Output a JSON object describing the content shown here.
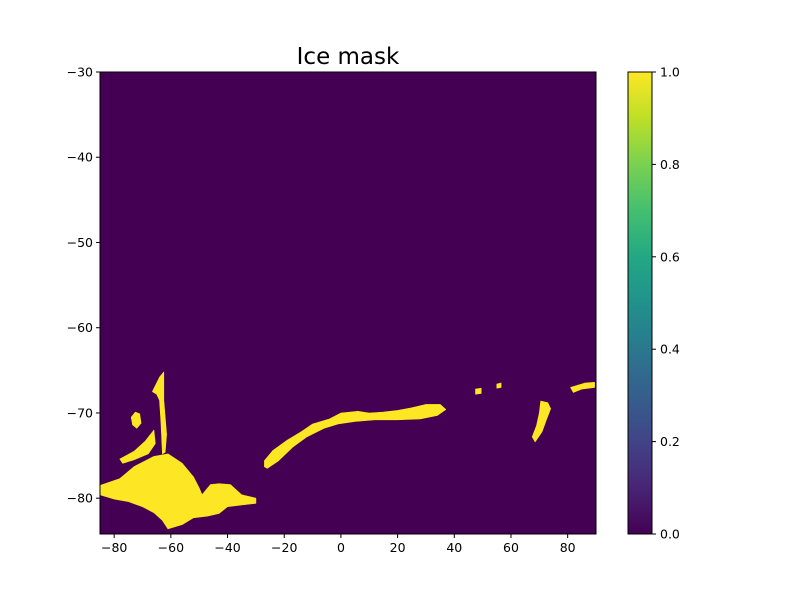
{
  "chart_data": {
    "type": "heatmap",
    "title": "Ice mask",
    "xlabel": "",
    "ylabel": "",
    "xlim": [
      -85,
      90
    ],
    "ylim": [
      -84.2,
      -30
    ],
    "xticks": [
      -80,
      -60,
      -40,
      -20,
      0,
      20,
      40,
      60,
      80
    ],
    "xtick_labels": [
      "−80",
      "−60",
      "−40",
      "−20",
      "0",
      "20",
      "40",
      "60",
      "80"
    ],
    "yticks": [
      -80,
      -70,
      -60,
      -50,
      -40,
      -30
    ],
    "ytick_labels": [
      "−80",
      "−70",
      "−60",
      "−50",
      "−40",
      "−30"
    ],
    "value_range": [
      0,
      1
    ],
    "colormap": "viridis",
    "background_value": 0,
    "grid": false,
    "colorbar": {
      "ticks": [
        0.0,
        0.2,
        0.4,
        0.6,
        0.8,
        1.0
      ],
      "tick_labels": [
        "0.0",
        "0.2",
        "0.4",
        "0.6",
        "0.8",
        "1.0"
      ],
      "position": "right"
    },
    "colors": {
      "value_0": "#440154",
      "value_1": "#fde725"
    },
    "ice_regions": [
      {
        "name": "weddell-ice-shelf",
        "value": 1,
        "outline": [
          [
            -85,
            -78.5
          ],
          [
            -78,
            -77.7
          ],
          [
            -73,
            -76.3
          ],
          [
            -66,
            -75.1
          ],
          [
            -61,
            -74.8
          ],
          [
            -56,
            -75.9
          ],
          [
            -52,
            -77.5
          ],
          [
            -50,
            -78.8
          ],
          [
            -49,
            -79.6
          ],
          [
            -46,
            -78.4
          ],
          [
            -43,
            -78.3
          ],
          [
            -39,
            -78.4
          ],
          [
            -35,
            -79.6
          ],
          [
            -30,
            -80
          ],
          [
            -30,
            -80.6
          ],
          [
            -35,
            -80.8
          ],
          [
            -40,
            -81
          ],
          [
            -43,
            -81.8
          ],
          [
            -47,
            -82.1
          ],
          [
            -52,
            -82.3
          ],
          [
            -56,
            -83.1
          ],
          [
            -61,
            -83.6
          ],
          [
            -63,
            -82.6
          ],
          [
            -66,
            -81.7
          ],
          [
            -70,
            -81
          ],
          [
            -75,
            -80.4
          ],
          [
            -80,
            -80.1
          ],
          [
            -85,
            -79.6
          ]
        ]
      },
      {
        "name": "peninsula-ice",
        "value": 1,
        "outline": [
          [
            -66.5,
            -67.5
          ],
          [
            -64,
            -65.8
          ],
          [
            -62.5,
            -65.2
          ],
          [
            -62.5,
            -68.5
          ],
          [
            -61.5,
            -72.5
          ],
          [
            -62,
            -74.6
          ],
          [
            -63,
            -74.8
          ],
          [
            -63.5,
            -71
          ],
          [
            -64,
            -68.5
          ],
          [
            -65,
            -67.8
          ]
        ]
      },
      {
        "name": "west-peninsula-islands",
        "value": 1,
        "outline": [
          [
            -78,
            -75.4
          ],
          [
            -73,
            -74.5
          ],
          [
            -69,
            -73.3
          ],
          [
            -66,
            -72
          ],
          [
            -65.5,
            -73.6
          ],
          [
            -68,
            -74.8
          ],
          [
            -73,
            -75.5
          ],
          [
            -77,
            -75.9
          ]
        ]
      },
      {
        "name": "western-island",
        "value": 1,
        "outline": [
          [
            -74,
            -70.5
          ],
          [
            -72.5,
            -69.9
          ],
          [
            -71,
            -70.1
          ],
          [
            -70.5,
            -71.2
          ],
          [
            -72,
            -71.8
          ],
          [
            -73.5,
            -71.4
          ]
        ]
      },
      {
        "name": "riiser-larsen-fimbul-ice",
        "value": 1,
        "outline": [
          [
            -27,
            -75.6
          ],
          [
            -24,
            -74.4
          ],
          [
            -19,
            -73.2
          ],
          [
            -14,
            -72.2
          ],
          [
            -10,
            -71.3
          ],
          [
            -4,
            -70.7
          ],
          [
            0,
            -70
          ],
          [
            6,
            -69.8
          ],
          [
            10,
            -70
          ],
          [
            15,
            -69.9
          ],
          [
            20,
            -69.7
          ],
          [
            25,
            -69.4
          ],
          [
            30,
            -69
          ],
          [
            35,
            -69
          ],
          [
            37,
            -69.6
          ],
          [
            34,
            -70.3
          ],
          [
            28,
            -70.7
          ],
          [
            20,
            -70.8
          ],
          [
            12,
            -70.8
          ],
          [
            5,
            -71
          ],
          [
            -1,
            -71.3
          ],
          [
            -6,
            -71.8
          ],
          [
            -12,
            -72.8
          ],
          [
            -17,
            -74
          ],
          [
            -22,
            -75.6
          ],
          [
            -26,
            -76.5
          ],
          [
            -27,
            -76.3
          ]
        ]
      },
      {
        "name": "amery-ice-shelf",
        "value": 1,
        "outline": [
          [
            70.5,
            -68.6
          ],
          [
            73,
            -68.8
          ],
          [
            74,
            -69.5
          ],
          [
            72.5,
            -70.8
          ],
          [
            71,
            -72.2
          ],
          [
            68.5,
            -73.4
          ],
          [
            67.5,
            -72.8
          ],
          [
            69,
            -71.5
          ],
          [
            70,
            -70
          ]
        ]
      },
      {
        "name": "eastern-coastal-ice",
        "value": 1,
        "outline": [
          [
            81,
            -67
          ],
          [
            86,
            -66.5
          ],
          [
            89.5,
            -66.4
          ],
          [
            89.5,
            -67
          ],
          [
            85,
            -67.2
          ],
          [
            82,
            -67.6
          ]
        ]
      },
      {
        "name": "small-coastal-patch-1",
        "value": 1,
        "outline": [
          [
            47.5,
            -67.2
          ],
          [
            49.5,
            -67.1
          ],
          [
            49.5,
            -67.7
          ],
          [
            47.5,
            -67.8
          ]
        ]
      },
      {
        "name": "small-coastal-patch-2",
        "value": 1,
        "outline": [
          [
            55,
            -66.6
          ],
          [
            56.5,
            -66.5
          ],
          [
            56.5,
            -67
          ],
          [
            55,
            -67.1
          ]
        ]
      }
    ]
  }
}
